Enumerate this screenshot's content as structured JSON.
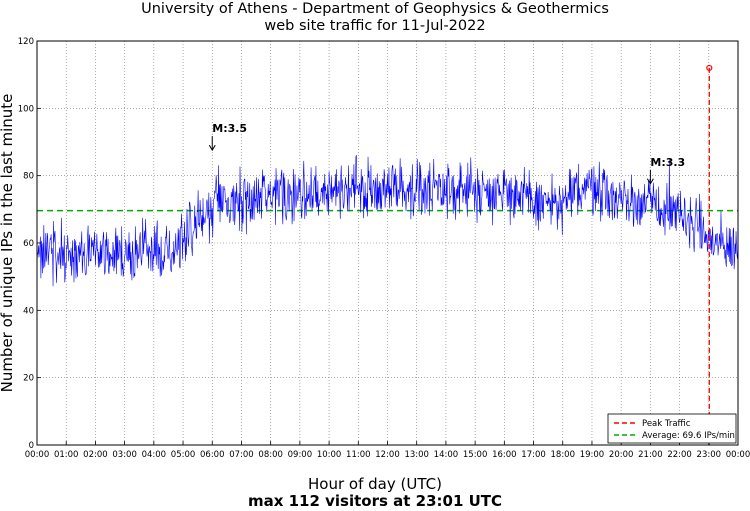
{
  "chart_data": {
    "type": "line",
    "title": [
      "University of Athens - Department of Geophysics & Geothermics",
      "web site traffic for 11-Jul-2022"
    ],
    "xlabel": "Hour of day (UTC)",
    "subtitle": "max 112 visitors at 23:01 UTC",
    "ylabel": "Number of unique IPs in the last minute",
    "ylim": [
      0,
      120
    ],
    "yticks": [
      0,
      20,
      40,
      60,
      80,
      100,
      120
    ],
    "xlim_hours": [
      0,
      24
    ],
    "xtick_labels": [
      "00:00",
      "01:00",
      "02:00",
      "03:00",
      "04:00",
      "05:00",
      "06:00",
      "07:00",
      "08:00",
      "09:00",
      "10:00",
      "11:00",
      "12:00",
      "13:00",
      "14:00",
      "15:00",
      "16:00",
      "17:00",
      "18:00",
      "19:00",
      "20:00",
      "21:00",
      "22:00",
      "23:00",
      "00:00"
    ],
    "grid": true,
    "series": [
      {
        "name": "Traffic",
        "color": "#0000ff",
        "x_hours": [
          0,
          0.5,
          1,
          1.5,
          2,
          2.5,
          3,
          3.5,
          4,
          4.5,
          5,
          5.5,
          6,
          6.1,
          6.5,
          7,
          7.5,
          8,
          8.5,
          9,
          9.5,
          10,
          10.5,
          11,
          11.5,
          12,
          12.5,
          13,
          13.5,
          14,
          14.5,
          15,
          15.5,
          16,
          16.5,
          17,
          17.5,
          18,
          18.5,
          19,
          19.5,
          20,
          20.5,
          21,
          21.5,
          22,
          22.5,
          23,
          23.5,
          24
        ],
        "values": [
          59,
          58,
          56,
          56,
          57,
          57,
          57,
          57,
          58,
          58,
          62,
          66,
          68,
          75,
          71,
          73,
          73,
          74,
          74,
          75,
          75,
          75,
          76,
          77,
          76,
          76,
          76,
          76,
          75,
          75,
          76,
          76,
          75,
          76,
          74,
          72,
          72,
          71,
          76,
          77,
          75,
          73,
          72,
          72,
          69,
          68,
          66,
          61,
          59,
          58
        ],
        "noise_amplitude": 5
      }
    ],
    "average": {
      "value": 69.6,
      "color": "#00aa00"
    },
    "peak": {
      "x_hour": 23.017,
      "value": 112,
      "color": "#ff0000"
    },
    "annotations": [
      {
        "text": "M:3.5",
        "x_hour": 6.0,
        "y": 87
      },
      {
        "text": "M:3.3",
        "x_hour": 21.0,
        "y": 77
      }
    ],
    "legend": {
      "placement": "bottom-right",
      "entries": [
        "Peak Traffic",
        "Average: 69.6 IPs/min"
      ]
    }
  }
}
